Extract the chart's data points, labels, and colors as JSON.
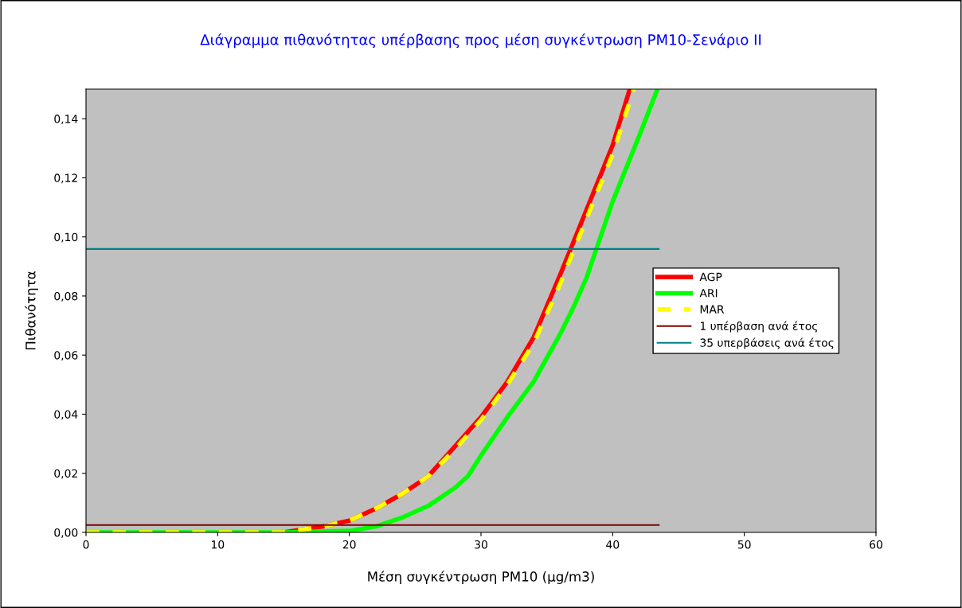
{
  "chart_data": {
    "type": "line",
    "title": "Διάγραμμα πιθανότητας υπέρβασης προς μέση συγκέντρωση PM10-Σενάριο ΙΙ",
    "xlabel": "Μέση συγκέντρωση PM10 (μg/m3)",
    "ylabel": "Πιθανότητα",
    "xlim": [
      0,
      60
    ],
    "xticks": [
      0,
      10,
      20,
      30,
      40,
      50,
      60
    ],
    "ylim": [
      0,
      0.15
    ],
    "yticks": [
      {
        "value": 0,
        "label": "0,00"
      },
      {
        "value": 0.02,
        "label": "0,02"
      },
      {
        "value": 0.04,
        "label": "0,04"
      },
      {
        "value": 0.06,
        "label": "0,06"
      },
      {
        "value": 0.08,
        "label": "0,08"
      },
      {
        "value": 0.1,
        "label": "0,10"
      },
      {
        "value": 0.12,
        "label": "0,12"
      },
      {
        "value": 0.14,
        "label": "0,14"
      }
    ],
    "grid": false,
    "legend": "right",
    "marker": "none",
    "series": [
      {
        "name": "AGP",
        "color": "#ff0000",
        "x": [
          15,
          18,
          20,
          22,
          24,
          26,
          28,
          30,
          32,
          34,
          36,
          38,
          40,
          41.3
        ],
        "values": [
          0,
          0.002,
          0.004,
          0.008,
          0.013,
          0.019,
          0.029,
          0.039,
          0.051,
          0.066,
          0.087,
          0.109,
          0.131,
          0.15
        ]
      },
      {
        "name": "ARI",
        "color": "#00ff00",
        "x": [
          0,
          5,
          10,
          15,
          20,
          22,
          24,
          26,
          28,
          29,
          30,
          32,
          34,
          36,
          37,
          38,
          39,
          40,
          42,
          43.4
        ],
        "values": [
          0,
          0,
          0,
          0,
          0.0005,
          0.002,
          0.005,
          0.009,
          0.015,
          0.019,
          0.026,
          0.039,
          0.051,
          0.067,
          0.076,
          0.086,
          0.099,
          0.112,
          0.134,
          0.15
        ]
      },
      {
        "name": "MAR",
        "color": "#ffff00",
        "line_style": "dashed",
        "x": [
          0,
          5,
          10,
          15,
          18,
          20,
          22,
          24,
          26,
          28,
          30,
          32,
          34,
          36,
          38,
          40,
          41.6
        ],
        "values": [
          0,
          0,
          0,
          0,
          0.002,
          0.004,
          0.008,
          0.013,
          0.019,
          0.028,
          0.038,
          0.05,
          0.064,
          0.084,
          0.106,
          0.128,
          0.15
        ]
      },
      {
        "name": "1 υπέρβαση ανά έτος",
        "color": "#800000",
        "x": [
          0,
          43.5
        ],
        "values": [
          0.0025,
          0.0025
        ]
      },
      {
        "name": "35 υπερβάσεις ανά έτος",
        "color": "#008080",
        "x": [
          0,
          43.5
        ],
        "values": [
          0.0959,
          0.0959
        ]
      }
    ]
  }
}
